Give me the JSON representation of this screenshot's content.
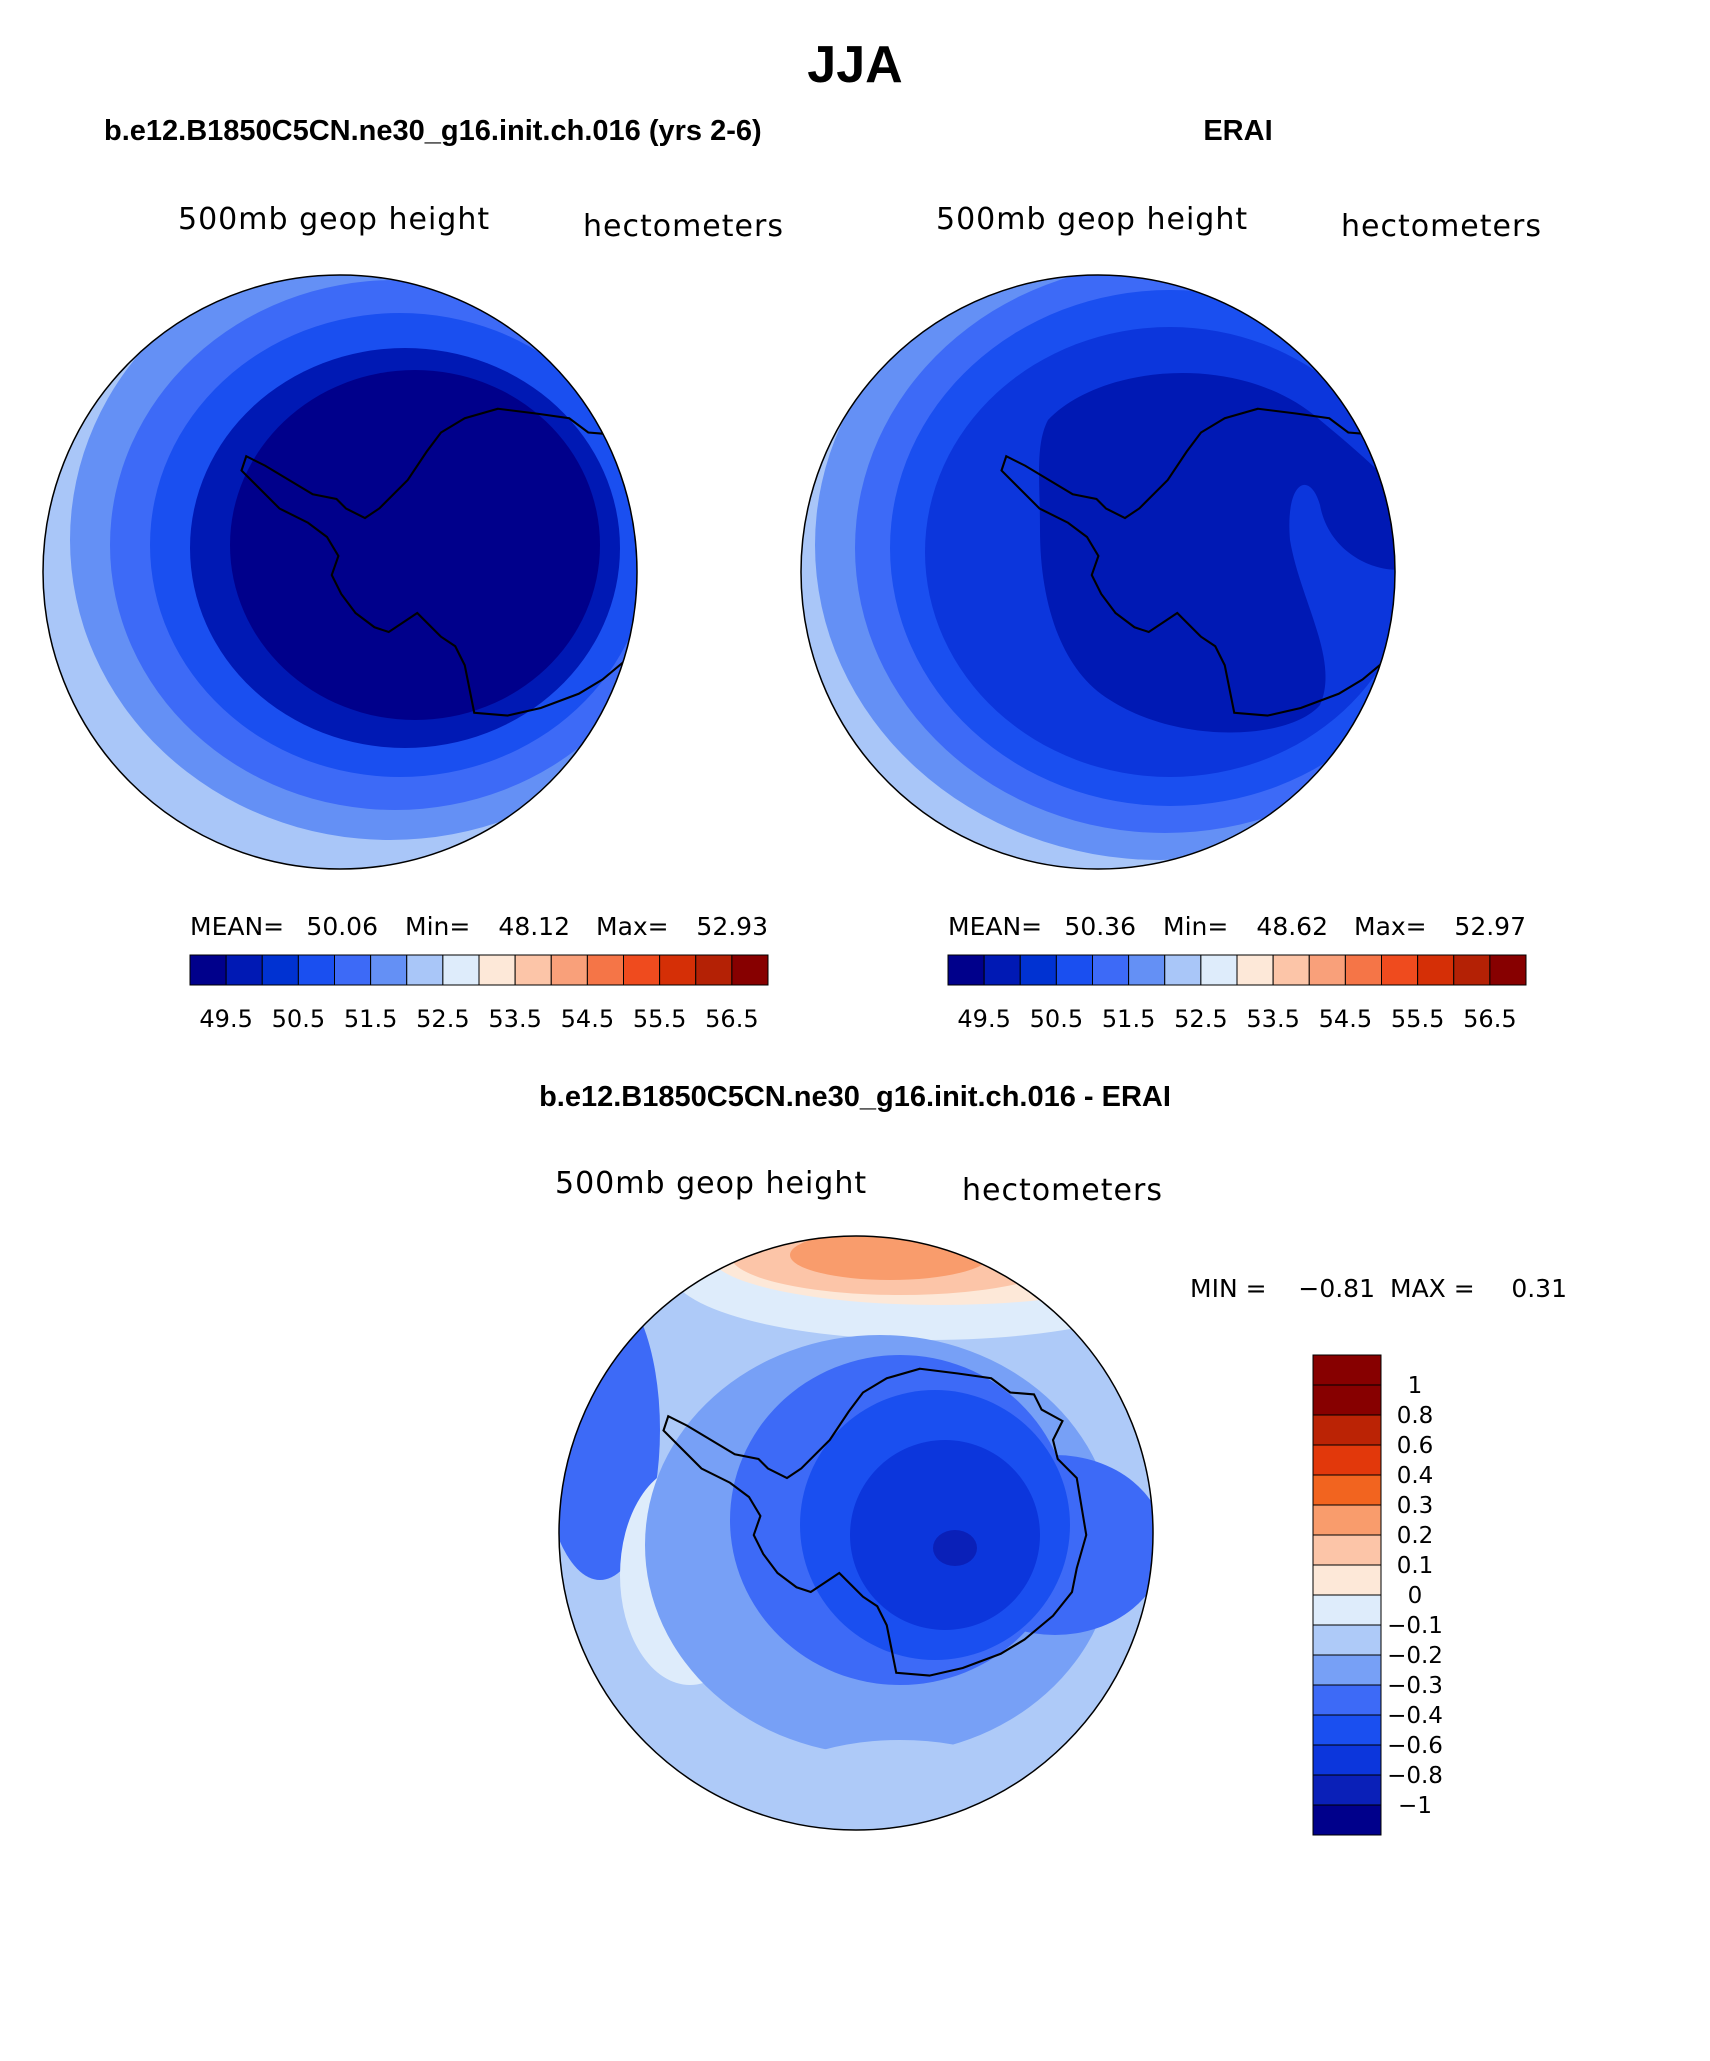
{
  "figure": {
    "title": "JJA"
  },
  "colors": {
    "abs_fills": [
      "#00008b",
      "#0019b4",
      "#0032d2",
      "#1a4ff0",
      "#3d6af7",
      "#6490f5",
      "#a9c6f8",
      "#deecfb",
      "#fde8d8",
      "#fcc5a8",
      "#f9a07a",
      "#f57547",
      "#ef4b1e",
      "#d52f06",
      "#b42105",
      "#870000"
    ],
    "diff_fills": [
      "#00008b",
      "#0a20b8",
      "#0c36dc",
      "#1a4ff0",
      "#3d6af7",
      "#77a0f6",
      "#aecaf8",
      "#deecfb",
      "#fde8d8",
      "#fcc5a8",
      "#f99c6c",
      "#f2641f",
      "#e2380b",
      "#bb2305",
      "#870000"
    ]
  },
  "chart_data": [
    {
      "type": "polar-contour-map",
      "title": "b.e12.B1850C5CN.ne30_g16.init.ch.016 (yrs 2-6)",
      "left_label": "500mb geop height",
      "right_label": "hectometers",
      "projection": "south polar stereographic",
      "stats": {
        "mean_label": "MEAN=",
        "mean": "50.06",
        "min_label": "Min=",
        "min": "48.12",
        "max_label": "Max=",
        "max": "52.93"
      },
      "contour_levels": [
        49,
        49.5,
        50,
        50.5,
        51,
        51.5,
        52,
        52.5,
        53,
        53.5,
        54,
        54.5,
        55,
        55.5,
        56,
        56.5
      ],
      "colorbar_tick_labels": [
        "49.5",
        "50.5",
        "51.5",
        "52.5",
        "53.5",
        "54.5",
        "55.5",
        "56.5"
      ],
      "colorbar_orientation": "horizontal"
    },
    {
      "type": "polar-contour-map",
      "title": "ERAI",
      "left_label": "500mb geop height",
      "right_label": "hectometers",
      "projection": "south polar stereographic",
      "stats": {
        "mean_label": "MEAN=",
        "mean": "50.36",
        "min_label": "Min=",
        "min": "48.62",
        "max_label": "Max=",
        "max": "52.97"
      },
      "contour_levels": [
        49,
        49.5,
        50,
        50.5,
        51,
        51.5,
        52,
        52.5,
        53,
        53.5,
        54,
        54.5,
        55,
        55.5,
        56,
        56.5
      ],
      "colorbar_tick_labels": [
        "49.5",
        "50.5",
        "51.5",
        "52.5",
        "53.5",
        "54.5",
        "55.5",
        "56.5"
      ],
      "colorbar_orientation": "horizontal"
    },
    {
      "type": "polar-contour-map",
      "title": "b.e12.B1850C5CN.ne30_g16.init.ch.016 - ERAI",
      "left_label": "500mb geop height",
      "right_label": "hectometers",
      "projection": "south polar stereographic",
      "stats": {
        "min_label": "MIN =",
        "min": "−0.81",
        "max_label": "MAX =",
        "max": "0.31"
      },
      "contour_levels": [
        -1,
        -0.8,
        -0.6,
        -0.4,
        -0.3,
        -0.2,
        -0.1,
        0,
        0.1,
        0.2,
        0.3,
        0.4,
        0.6,
        0.8,
        1
      ],
      "colorbar_tick_labels": [
        "1",
        "0.8",
        "0.6",
        "0.4",
        "0.3",
        "0.2",
        "0.1",
        "0",
        "−0.1",
        "−0.2",
        "−0.3",
        "−0.4",
        "−0.6",
        "−0.8",
        "−1"
      ],
      "colorbar_orientation": "vertical"
    }
  ]
}
